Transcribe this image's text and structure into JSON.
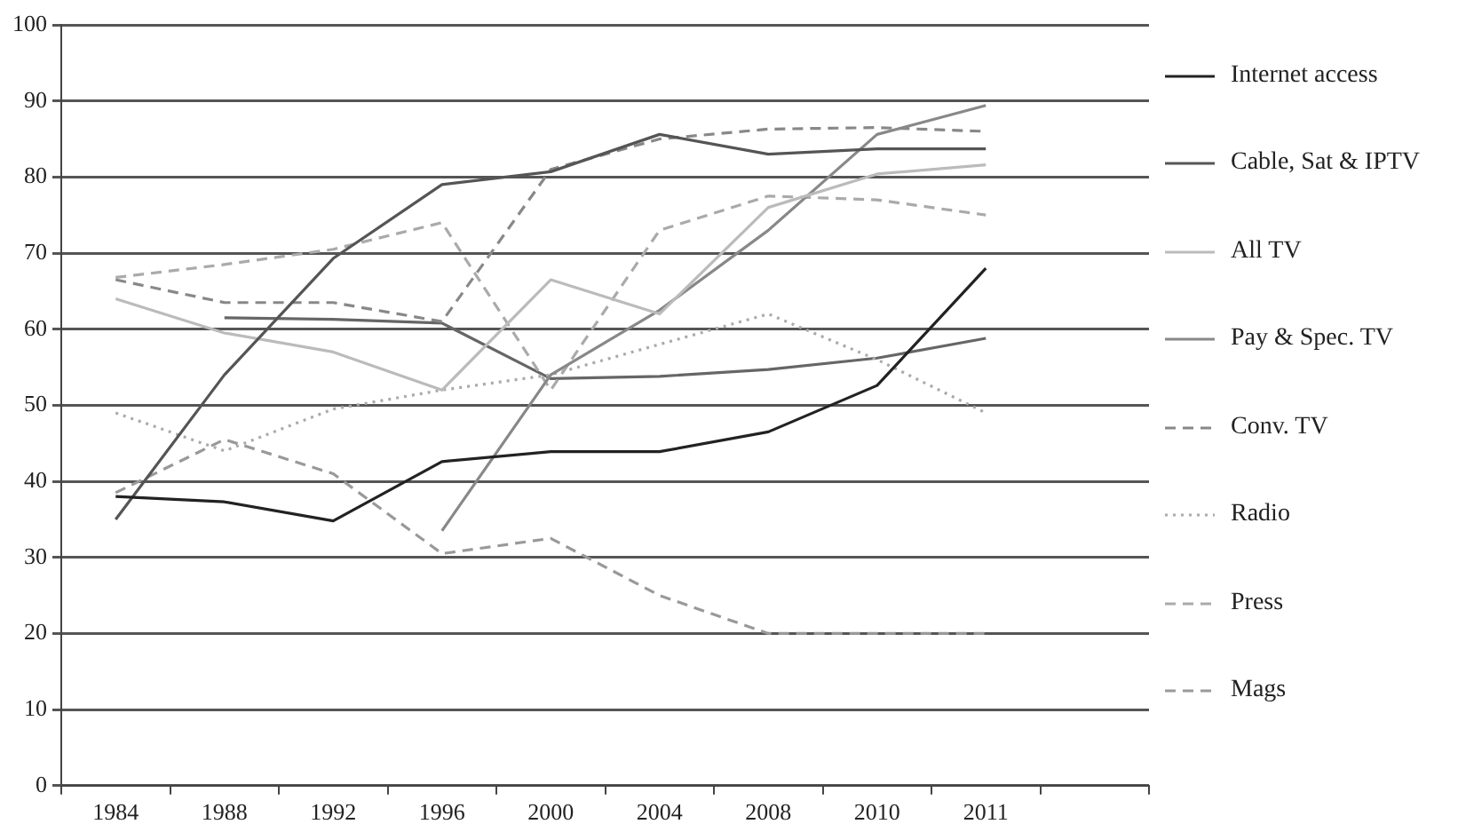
{
  "chart_data": {
    "type": "line",
    "categories": [
      "1984",
      "1988",
      "1992",
      "1996",
      "2000",
      "2004",
      "2008",
      "2010",
      "2011",
      null
    ],
    "ylim": [
      0,
      100
    ],
    "yticks": [
      0,
      10,
      20,
      30,
      40,
      50,
      60,
      70,
      80,
      90,
      100
    ],
    "grid": "y",
    "legend": "right",
    "marker": "none",
    "series": [
      {
        "name": "Internet access",
        "color": "#222222",
        "line_style": "solid",
        "values": [
          38,
          37.3,
          34.8,
          42.6,
          43.9,
          43.9,
          46.5,
          52.6,
          68,
          null
        ]
      },
      {
        "name": "Cable, Sat & IPTV",
        "color": "#555555",
        "line_style": "solid",
        "values": [
          35,
          54,
          69.3,
          79,
          80.7,
          85.6,
          83,
          83.7,
          83.7,
          null
        ]
      },
      {
        "name": "All TV",
        "color": "#bbbbbb",
        "line_style": "solid",
        "values": [
          64,
          59.5,
          57,
          52,
          66.5,
          62,
          76,
          80.4,
          81.6,
          null
        ]
      },
      {
        "name": "Pay & Spec. TV",
        "color": "#888888",
        "line_style": "solid",
        "values": [
          null,
          null,
          null,
          33.5,
          54,
          62.5,
          73,
          85.6,
          89.4,
          null
        ]
      },
      {
        "name": "Conv. TV",
        "color": "#888888",
        "line_style": "dashed",
        "values": [
          66.5,
          63.5,
          63.5,
          61,
          81,
          85,
          86.3,
          86.5,
          86,
          null
        ]
      },
      {
        "name": "Radio",
        "color": "#aaaaaa",
        "line_style": "dotted",
        "values": [
          49,
          44,
          49.5,
          52,
          54,
          58,
          62,
          56,
          49,
          null
        ]
      },
      {
        "name": "Press",
        "color": "#aaaaaa",
        "line_style": "dashed",
        "values": [
          66.8,
          68.5,
          70.5,
          74,
          52,
          73,
          77.5,
          77,
          75,
          null
        ]
      },
      {
        "name": "Mags",
        "color": "#999999",
        "line_style": "dashed",
        "values": [
          38.5,
          45.5,
          41,
          30.5,
          32.5,
          25,
          20,
          20,
          20,
          null
        ]
      },
      {
        "color": "#666666",
        "line_style": "solid",
        "values": [
          null,
          61.5,
          61.3,
          60.8,
          53.5,
          53.8,
          54.7,
          56.2,
          58.8,
          null
        ]
      }
    ]
  }
}
